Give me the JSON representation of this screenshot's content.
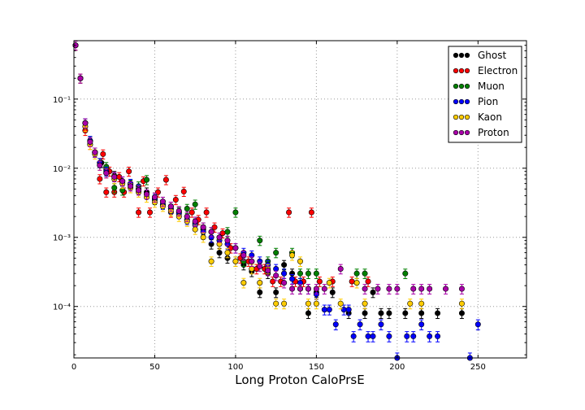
{
  "chart_data": {
    "type": "scatter",
    "title": "",
    "xlabel": "Long Proton CaloPrsE",
    "ylabel": "",
    "xlim": [
      0,
      280
    ],
    "ylim": [
      1.8e-05,
      0.7
    ],
    "yscale": "log",
    "x_ticks": [
      0,
      50,
      100,
      150,
      200,
      250
    ],
    "x_tick_labels": [
      "0",
      "50",
      "100",
      "150",
      "200",
      "250"
    ],
    "y_ticks": [
      0.0001,
      0.001,
      0.01,
      0.1
    ],
    "y_tick_labels": [
      "10⁻⁴",
      "10⁻³",
      "10⁻²",
      "10⁻¹"
    ],
    "grid": true,
    "legend_position": "top-right",
    "error_bars": true,
    "series": [
      {
        "name": "Ghost",
        "color": "#000000",
        "x": [
          1,
          4,
          7,
          10,
          13,
          17,
          20,
          25,
          30,
          35,
          40,
          45,
          50,
          55,
          60,
          65,
          70,
          75,
          80,
          85,
          90,
          95,
          100,
          105,
          110,
          115,
          120,
          125,
          130,
          135,
          140,
          145,
          150,
          160,
          170,
          180,
          185,
          190,
          195,
          205,
          215,
          225,
          240
        ],
        "y": [
          0.6,
          0.2,
          0.045,
          0.025,
          0.017,
          0.012,
          0.0095,
          0.0078,
          0.0065,
          0.0058,
          0.005,
          0.0045,
          0.0038,
          0.0033,
          0.0028,
          0.0024,
          0.002,
          0.0016,
          0.0013,
          0.0008,
          0.0006,
          0.0005,
          0.00045,
          0.0004,
          0.00032,
          0.00016,
          0.0003,
          0.00016,
          0.0004,
          0.0003,
          0.00018,
          8e-05,
          0.00016,
          0.00016,
          8e-05,
          8e-05,
          0.00016,
          8e-05,
          8e-05,
          8e-05,
          8e-05,
          8e-05,
          8e-05
        ]
      },
      {
        "name": "Electron",
        "color": "#ff0000",
        "x": [
          1,
          4,
          7,
          10,
          13,
          16,
          18,
          20,
          22,
          25,
          28,
          31,
          34,
          40,
          43,
          47,
          52,
          57,
          60,
          63,
          68,
          73,
          77,
          82,
          87,
          92,
          97,
          103,
          108,
          113,
          118,
          123,
          128,
          133,
          137,
          142,
          147,
          152,
          160,
          172,
          182
        ],
        "y": [
          0.6,
          0.2,
          0.035,
          0.022,
          0.017,
          0.007,
          0.016,
          0.0045,
          0.009,
          0.0045,
          0.0075,
          0.0045,
          0.009,
          0.0023,
          0.0065,
          0.0023,
          0.0045,
          0.0068,
          0.0023,
          0.0035,
          0.0046,
          0.0023,
          0.0018,
          0.0023,
          0.0014,
          0.00115,
          0.0007,
          0.0005,
          0.00045,
          0.00035,
          0.00035,
          0.00023,
          0.00023,
          0.0023,
          0.00023,
          0.00023,
          0.0023,
          0.00023,
          0.00023,
          0.00023,
          0.00023
        ]
      },
      {
        "name": "Muon",
        "color": "#008000",
        "x": [
          1,
          4,
          7,
          10,
          13,
          16,
          20,
          25,
          30,
          35,
          40,
          45,
          50,
          55,
          60,
          65,
          70,
          75,
          80,
          85,
          90,
          95,
          100,
          105,
          110,
          115,
          120,
          125,
          130,
          135,
          140,
          145,
          150,
          175,
          180,
          205
        ],
        "y": [
          0.6,
          0.2,
          0.045,
          0.025,
          0.017,
          0.012,
          0.0105,
          0.0052,
          0.0048,
          0.0058,
          0.0055,
          0.0068,
          0.0035,
          0.003,
          0.0026,
          0.0023,
          0.0026,
          0.003,
          0.0014,
          0.0012,
          0.001,
          0.0012,
          0.0023,
          0.00045,
          0.00045,
          0.0009,
          0.00045,
          0.0006,
          0.0003,
          0.0006,
          0.0003,
          0.0003,
          0.0003,
          0.0003,
          0.0003,
          0.0003
        ]
      },
      {
        "name": "Pion",
        "color": "#0000ff",
        "x": [
          1,
          4,
          7,
          10,
          13,
          16,
          20,
          25,
          30,
          35,
          40,
          45,
          50,
          55,
          60,
          65,
          70,
          75,
          80,
          85,
          90,
          95,
          100,
          105,
          110,
          115,
          120,
          125,
          130,
          135,
          140,
          145,
          150,
          155,
          158,
          162,
          167,
          170,
          173,
          177,
          182,
          185,
          190,
          195,
          200,
          206,
          210,
          215,
          220,
          225,
          245,
          250
        ],
        "y": [
          0.6,
          0.2,
          0.045,
          0.025,
          0.017,
          0.012,
          0.009,
          0.0075,
          0.0065,
          0.006,
          0.005,
          0.0042,
          0.0036,
          0.003,
          0.0026,
          0.0022,
          0.0018,
          0.0015,
          0.0012,
          0.001,
          0.0009,
          0.0008,
          0.0007,
          0.0006,
          0.00055,
          0.00045,
          0.0004,
          0.00035,
          0.0003,
          0.00025,
          0.00022,
          0.00018,
          0.00015,
          9e-05,
          9e-05,
          5.5e-05,
          9e-05,
          9e-05,
          3.7e-05,
          5.5e-05,
          3.7e-05,
          3.7e-05,
          5.5e-05,
          3.7e-05,
          1.8e-05,
          3.7e-05,
          3.7e-05,
          5.5e-05,
          3.7e-05,
          3.7e-05,
          1.8e-05,
          5.5e-05
        ]
      },
      {
        "name": "Kaon",
        "color": "#ffcc00",
        "x": [
          1,
          4,
          7,
          10,
          13,
          16,
          20,
          25,
          30,
          35,
          40,
          45,
          50,
          55,
          60,
          65,
          70,
          75,
          80,
          85,
          90,
          95,
          100,
          105,
          110,
          115,
          120,
          125,
          130,
          135,
          140,
          145,
          150,
          158,
          165,
          175,
          180,
          208,
          215,
          240
        ],
        "y": [
          0.6,
          0.2,
          0.04,
          0.022,
          0.016,
          0.011,
          0.0085,
          0.007,
          0.006,
          0.0052,
          0.0045,
          0.0038,
          0.0032,
          0.0028,
          0.0024,
          0.002,
          0.0017,
          0.0013,
          0.001,
          0.00045,
          0.0008,
          0.0006,
          0.00045,
          0.00022,
          0.00035,
          0.00022,
          0.00035,
          0.00011,
          0.00011,
          0.00055,
          0.00045,
          0.00011,
          0.00011,
          0.00022,
          0.00011,
          0.00022,
          0.00011,
          0.00011,
          0.00011,
          0.00011
        ]
      },
      {
        "name": "Proton",
        "color": "#aa00aa",
        "x": [
          1,
          4,
          7,
          10,
          13,
          16,
          20,
          25,
          30,
          35,
          40,
          45,
          50,
          55,
          60,
          65,
          70,
          75,
          80,
          85,
          90,
          95,
          100,
          105,
          110,
          115,
          120,
          125,
          130,
          135,
          140,
          145,
          150,
          155,
          165,
          180,
          188,
          195,
          200,
          210,
          215,
          220,
          230,
          240
        ],
        "y": [
          0.6,
          0.2,
          0.045,
          0.024,
          0.017,
          0.011,
          0.0085,
          0.0075,
          0.0065,
          0.0055,
          0.0048,
          0.0042,
          0.0038,
          0.0033,
          0.0028,
          0.0024,
          0.002,
          0.0017,
          0.0014,
          0.0012,
          0.001,
          0.0009,
          0.0007,
          0.00055,
          0.00045,
          0.00038,
          0.00033,
          0.00028,
          0.00022,
          0.00018,
          0.00018,
          0.00018,
          0.00018,
          0.00018,
          0.00035,
          0.00018,
          0.00018,
          0.00018,
          0.00018,
          0.00018,
          0.00018,
          0.00018,
          0.00018,
          0.00018
        ]
      }
    ]
  }
}
